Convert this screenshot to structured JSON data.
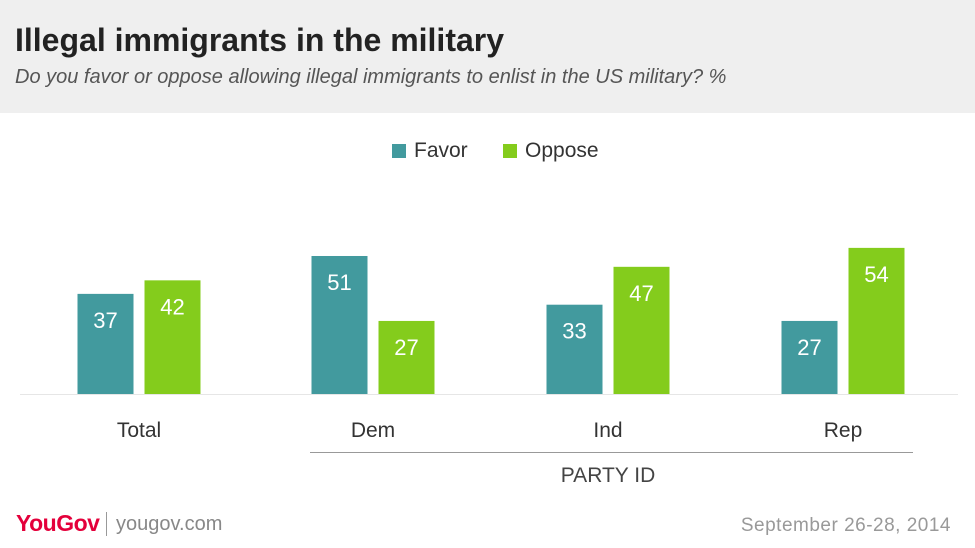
{
  "header": {
    "title": "Illegal immigrants in the military",
    "subtitle": "Do you favor or oppose allowing illegal immigrants to enlist in the US military? %"
  },
  "footer": {
    "brand": "YouGov",
    "url": "yougov.com",
    "date": "September 26-28, 2014"
  },
  "colors": {
    "favor": "#429a9e",
    "oppose": "#84cc1c"
  },
  "chart_data": {
    "type": "bar",
    "title": "Illegal immigrants in the military",
    "subtitle": "Do you favor or oppose allowing illegal immigrants to enlist in the US military? %",
    "categories": [
      "Total",
      "Dem",
      "Ind",
      "Rep"
    ],
    "group_label": "PARTY ID",
    "series": [
      {
        "name": "Favor",
        "values": [
          37,
          51,
          33,
          27
        ]
      },
      {
        "name": "Oppose",
        "values": [
          42,
          27,
          47,
          54
        ]
      }
    ],
    "legend_position": "top-center",
    "grid": false,
    "ylim": [
      0,
      54
    ]
  }
}
